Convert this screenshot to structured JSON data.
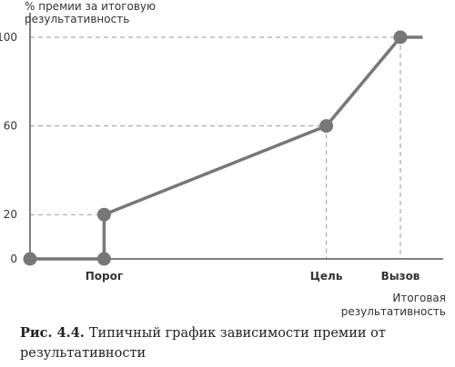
{
  "chart_data": {
    "type": "line",
    "title": "",
    "ylabel": [
      "% премии за итоговую",
      "результативность"
    ],
    "xlabel": [
      "Итоговая",
      "результативность"
    ],
    "ylim": [
      0,
      100
    ],
    "yticks": [
      0,
      20,
      60,
      100
    ],
    "categories": [
      "Порог",
      "Цель",
      "Вызов"
    ],
    "series": [
      {
        "points": [
          {
            "x": 0,
            "y": 0
          },
          {
            "x": 1,
            "y": 0
          },
          {
            "x": 1,
            "y": 20
          },
          {
            "x": 4,
            "y": 60
          },
          {
            "x": 5,
            "y": 100
          },
          {
            "x": 5.3,
            "y": 100
          }
        ],
        "markers": [
          0,
          1,
          2,
          3,
          4
        ]
      }
    ],
    "category_x": [
      1,
      4,
      5
    ],
    "grid": "dashed guides to marked points",
    "colors": {
      "line": "#777777",
      "axis": "#555555",
      "guide": "#999999"
    }
  },
  "caption": {
    "number": "Рис. 4.4.",
    "text": "Типичный график зависимости премии от результативности"
  }
}
